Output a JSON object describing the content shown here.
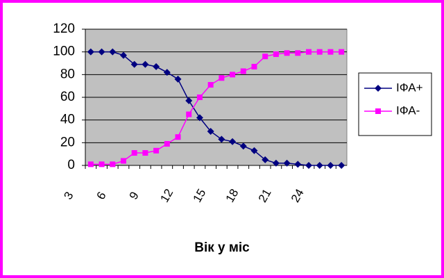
{
  "chart_data": {
    "type": "line",
    "x_label": "Вік у міс",
    "categories": [
      "3",
      null,
      null,
      "6",
      null,
      null,
      "9",
      null,
      null,
      "12",
      null,
      null,
      "15",
      null,
      null,
      "18",
      null,
      null,
      "21",
      null,
      null,
      "24",
      null,
      null
    ],
    "series": [
      {
        "name": "ІФА+",
        "color": "#000080",
        "marker": "diamond",
        "values": [
          100,
          100,
          100,
          97,
          89,
          89,
          87,
          82,
          76,
          57,
          42,
          30,
          23,
          21,
          17,
          13,
          5,
          2,
          2,
          1,
          0,
          0,
          0,
          0
        ]
      },
      {
        "name": "ІФА-",
        "color": "#ff00ff",
        "marker": "square",
        "values": [
          1,
          1,
          1,
          4,
          11,
          11,
          13,
          19,
          25,
          45,
          60,
          71,
          77,
          80,
          83,
          87,
          96,
          98,
          99,
          99,
          100,
          100,
          100,
          100
        ]
      }
    ],
    "ylim": [
      0,
      120
    ],
    "yticks": [
      0,
      20,
      40,
      60,
      80,
      100,
      120
    ],
    "grid": true,
    "legend": "right"
  }
}
